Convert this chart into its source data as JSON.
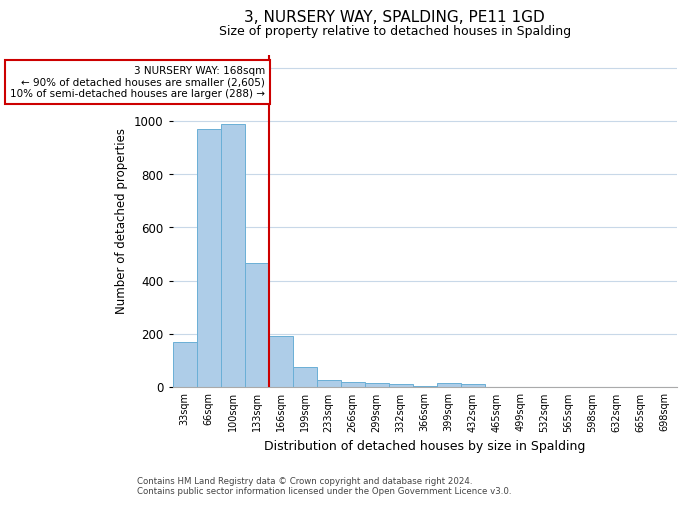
{
  "title": "3, NURSERY WAY, SPALDING, PE11 1GD",
  "subtitle": "Size of property relative to detached houses in Spalding",
  "xlabel": "Distribution of detached houses by size in Spalding",
  "ylabel": "Number of detached properties",
  "annotation_line1": "3 NURSERY WAY: 168sqm",
  "annotation_line2": "← 90% of detached houses are smaller (2,605)",
  "annotation_line3": "10% of semi-detached houses are larger (288) →",
  "footer1": "Contains HM Land Registry data © Crown copyright and database right 2024.",
  "footer2": "Contains public sector information licensed under the Open Government Licence v3.0.",
  "categories": [
    "33sqm",
    "66sqm",
    "100sqm",
    "133sqm",
    "166sqm",
    "199sqm",
    "233sqm",
    "266sqm",
    "299sqm",
    "332sqm",
    "366sqm",
    "399sqm",
    "432sqm",
    "465sqm",
    "499sqm",
    "532sqm",
    "565sqm",
    "598sqm",
    "632sqm",
    "665sqm",
    "698sqm"
  ],
  "values": [
    170,
    970,
    990,
    465,
    190,
    75,
    25,
    20,
    15,
    10,
    5,
    15,
    10,
    0,
    0,
    0,
    0,
    0,
    0,
    0,
    0
  ],
  "bar_color": "#aecde8",
  "bar_edge_color": "#6aafd6",
  "vline_index": 4,
  "vline_color": "#cc0000",
  "ylim": [
    0,
    1250
  ],
  "yticks": [
    0,
    200,
    400,
    600,
    800,
    1000,
    1200
  ],
  "annotation_box_facecolor": "#ffffff",
  "annotation_box_edgecolor": "#cc0000",
  "bg_color": "#ffffff",
  "grid_color": "#c8d8e8"
}
